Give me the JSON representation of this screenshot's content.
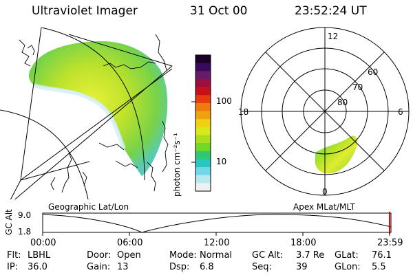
{
  "header": {
    "instrument": "Ultraviolet Imager",
    "date": "31 Oct 00",
    "time": "23:52:24 UT"
  },
  "colorbar": {
    "unit_label": "photon cm⁻²s⁻¹",
    "ticks": [
      "100",
      "10"
    ],
    "colors": [
      "#1a0028",
      "#3a0a5a",
      "#6a1a6a",
      "#9a1040",
      "#c8101a",
      "#e83a10",
      "#f07a10",
      "#f0a010",
      "#f0d010",
      "#d8e818",
      "#a8e020",
      "#70d828",
      "#30c870",
      "#28c8c0",
      "#70d8e8",
      "#b8e8f0",
      "#f0f0f0"
    ]
  },
  "polar_plot": {
    "mlt_labels": {
      "top": "12",
      "left": "18",
      "right": "6",
      "bottom": "0"
    },
    "lat_labels": [
      "60",
      "70",
      "80"
    ],
    "frame_label": "Apex MLat/MLT"
  },
  "geo_plot": {
    "frame_label": "Geographic Lat/Lon"
  },
  "altitude_plot": {
    "axis_label": "GC Alt",
    "y_ticks": [
      "9.0",
      "1.8"
    ],
    "x_ticks": [
      "00:00",
      "06:00",
      "12:00",
      "18:00",
      "23:59"
    ],
    "marker_color": "#d01010"
  },
  "info": {
    "rows": [
      [
        {
          "label": "Flt:",
          "value": "LBHL"
        },
        {
          "label": "Door:",
          "value": "Open"
        },
        {
          "label": "Mode:",
          "value": "Normal"
        },
        {
          "label": "GC Alt:",
          "value": "3.7 Re"
        },
        {
          "label": "GLat:",
          "value": "76.1"
        }
      ],
      [
        {
          "label": "IP:",
          "value": "36.0"
        },
        {
          "label": "Gain:",
          "value": "13"
        },
        {
          "label": "Dsp:",
          "value": "6.8"
        },
        {
          "label": "Seq:",
          "value": "39"
        },
        {
          "label": "GLon:",
          "value": "5.5"
        }
      ]
    ]
  }
}
